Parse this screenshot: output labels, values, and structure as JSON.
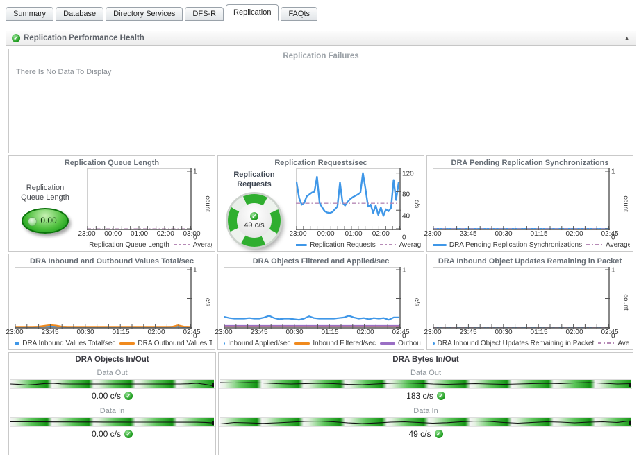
{
  "tabs": [
    {
      "label": "Summary",
      "active": false
    },
    {
      "label": "Database",
      "active": false
    },
    {
      "label": "Directory Services",
      "active": false
    },
    {
      "label": "DFS-R",
      "active": false
    },
    {
      "label": "Replication",
      "active": true
    },
    {
      "label": "FAQts",
      "active": false
    }
  ],
  "header": {
    "title": "Replication Performance Health",
    "status_icon": "green-check-icon",
    "collapse_icon": "▲"
  },
  "failures_panel": {
    "title": "Replication Failures",
    "empty_text": "There Is No Data To Display"
  },
  "gauges": {
    "queue": {
      "label_line1": "Replication",
      "label_line2": "Queue Length",
      "value": "0.00"
    },
    "requests": {
      "label_line1": "Replication",
      "label_line2": "Requests",
      "value": "49 c/s",
      "status_icon": "green-check-icon"
    }
  },
  "icons": {
    "check_glyph": "✓"
  },
  "colors": {
    "series_blue": "#3f97e8",
    "series_orange": "#f08a1e",
    "series_purple": "#9a6fc4",
    "average_dash": "#b68ab6",
    "gauge_green": "#1b9e1b"
  },
  "chart_data": [
    {
      "type": "line",
      "title": "Replication Queue Length",
      "ylabel": "count",
      "ylim": [
        0,
        1
      ],
      "yticks": [
        {
          "v": 0,
          "label": "0"
        },
        {
          "v": 0.5,
          "label": ""
        },
        {
          "v": 1,
          "label": "1"
        }
      ],
      "n_xticks": 13,
      "xtick_labels": [
        "23:00",
        "00:00",
        "01:00",
        "02:00",
        "03:00"
      ],
      "series": [],
      "average": 0,
      "legend": [
        {
          "swatch": "square",
          "color": "#3f97e8",
          "label": "Replication Queue Length"
        },
        {
          "swatch": "dash",
          "color": "#b68ab6",
          "label": "Average"
        }
      ]
    },
    {
      "type": "line",
      "title": "Replication Requests/sec",
      "ylabel": "c/s",
      "ylim": [
        0,
        124
      ],
      "yticks": [
        {
          "v": 0,
          "label": "0"
        },
        {
          "v": 40,
          "label": "40"
        },
        {
          "v": 80,
          "label": "80"
        },
        {
          "v": 120,
          "label": "120"
        }
      ],
      "n_xticks": 16,
      "xtick_labels": [
        "23:00",
        "00:00",
        "01:00",
        "02:00"
      ],
      "xtick_pos": [
        0.02,
        0.285,
        0.55,
        0.81
      ],
      "series": [
        {
          "name": "Replication Requests",
          "color": "#3f97e8",
          "width": 2.4,
          "values": [
            100,
            66,
            52,
            56,
            70,
            74,
            78,
            80,
            112,
            56,
            46,
            38,
            35,
            34,
            36,
            42,
            48,
            100,
            56,
            50,
            58,
            64,
            68,
            71,
            74,
            78,
            120,
            86,
            48,
            52,
            34,
            50,
            30,
            46,
            28,
            42,
            38,
            45,
            105,
            62,
            100
          ]
        }
      ],
      "average": 55,
      "legend": [
        {
          "swatch": "line",
          "color": "#3f97e8",
          "label": "Replication Requests"
        },
        {
          "swatch": "dash",
          "color": "#b68ab6",
          "label": "Average"
        }
      ]
    },
    {
      "type": "line",
      "title": "DRA Pending Replication Synchronizations",
      "ylabel": "count",
      "ylim": [
        0,
        1
      ],
      "yticks": [
        {
          "v": 0,
          "label": "0"
        },
        {
          "v": 0.5,
          "label": ""
        },
        {
          "v": 1,
          "label": "1"
        }
      ],
      "n_xticks": 16,
      "xtick_labels": [
        "23:00",
        "23:45",
        "00:30",
        "01:15",
        "02:00",
        "02:45"
      ],
      "series": [
        {
          "name": "DRA Pending Replication Synchronizations",
          "color": "#3f97e8",
          "width": 2,
          "values": [
            0,
            0
          ]
        }
      ],
      "average": 0,
      "legend": [
        {
          "swatch": "line",
          "color": "#3f97e8",
          "label": "DRA Pending Replication Synchronizations"
        },
        {
          "swatch": "dash",
          "color": "#b68ab6",
          "label": "Average"
        }
      ]
    },
    {
      "type": "line",
      "title": "DRA Inbound and Outbound Values Total/sec",
      "ylabel": "c/s",
      "ylim": [
        0,
        1
      ],
      "yticks": [
        {
          "v": 0,
          "label": "0"
        },
        {
          "v": 0.5,
          "label": ""
        },
        {
          "v": 1,
          "label": "1"
        }
      ],
      "n_xticks": 16,
      "xtick_labels": [
        "23:00",
        "23:45",
        "00:30",
        "01:15",
        "02:00",
        "02:45"
      ],
      "series": [
        {
          "name": "DRA Inbound Values Total/sec",
          "color": "#3f97e8",
          "width": 2,
          "values": [
            0.006,
            0.006,
            0.006,
            0.006,
            0.008,
            0.015,
            0.02,
            0.015,
            0.008,
            0.006,
            0.006,
            0.006,
            0.006,
            0.006,
            0.006,
            0.006,
            0.006,
            0.006,
            0.006,
            0.006,
            0.006,
            0.006,
            0.006,
            0.006,
            0.006,
            0.006,
            0.006,
            0.008,
            0.01,
            0.006,
            0.006
          ]
        },
        {
          "name": "DRA Outbound Values Total/sec",
          "color": "#f08a1e",
          "width": 2,
          "values": [
            0.008,
            0.008,
            0.008,
            0.008,
            0.012,
            0.025,
            0.04,
            0.03,
            0.012,
            0.008,
            0.008,
            0.008,
            0.008,
            0.008,
            0.008,
            0.008,
            0.008,
            0.008,
            0.008,
            0.008,
            0.008,
            0.008,
            0.008,
            0.008,
            0.008,
            0.008,
            0.008,
            0.01,
            0.035,
            0.012,
            0.008
          ]
        }
      ],
      "average": null,
      "legend": [
        {
          "swatch": "line",
          "color": "#3f97e8",
          "label": "DRA Inbound Values Total/sec"
        },
        {
          "swatch": "line",
          "color": "#f08a1e",
          "label": "DRA Outbound Values Tota"
        }
      ]
    },
    {
      "type": "line",
      "title": "DRA Objects Filtered and Applied/sec",
      "ylabel": "c/s",
      "ylim": [
        0,
        1
      ],
      "yticks": [
        {
          "v": 0,
          "label": "0"
        },
        {
          "v": 0.5,
          "label": ""
        },
        {
          "v": 1,
          "label": "1"
        }
      ],
      "n_xticks": 16,
      "xtick_labels": [
        "23:00",
        "23:45",
        "00:30",
        "01:15",
        "02:00",
        "02:45"
      ],
      "series": [
        {
          "name": "Inbound Applied/sec",
          "color": "#3f97e8",
          "width": 2.2,
          "values": [
            0.18,
            0.16,
            0.15,
            0.15,
            0.15,
            0.16,
            0.15,
            0.15,
            0.17,
            0.2,
            0.16,
            0.14,
            0.15,
            0.15,
            0.14,
            0.13,
            0.15,
            0.19,
            0.16,
            0.15,
            0.15,
            0.15,
            0.15,
            0.16,
            0.17,
            0.2,
            0.17,
            0.15,
            0.16,
            0.14,
            0.16,
            0.15,
            0.16,
            0.13,
            0.17,
            0.17
          ]
        },
        {
          "name": "Inbound Filtered/sec",
          "color": "#f08a1e",
          "width": 1.8,
          "values": [
            0.018,
            0.018
          ]
        },
        {
          "name": "Outbound Filtered/sec",
          "color": "#9a6fc4",
          "width": 1.8,
          "values": [
            0.026,
            0.026
          ]
        }
      ],
      "average": null,
      "legend": [
        {
          "swatch": "line",
          "color": "#3f97e8",
          "label": "Inbound Applied/sec"
        },
        {
          "swatch": "line",
          "color": "#f08a1e",
          "label": "Inbound Filtered/sec"
        },
        {
          "swatch": "line",
          "color": "#9a6fc4",
          "label": "Outbound F"
        }
      ]
    },
    {
      "type": "line",
      "title": "DRA Inbound Object Updates Remaining in Packet",
      "ylabel": "count",
      "ylim": [
        0,
        1
      ],
      "yticks": [
        {
          "v": 0,
          "label": "0"
        },
        {
          "v": 0.5,
          "label": ""
        },
        {
          "v": 1,
          "label": "1"
        }
      ],
      "n_xticks": 16,
      "xtick_labels": [
        "23:00",
        "23:45",
        "00:30",
        "01:15",
        "02:00",
        "02:45"
      ],
      "series": [
        {
          "name": "DRA Inbound Object Updates Remaining in Packet",
          "color": "#3f97e8",
          "width": 2,
          "values": [
            0,
            0
          ]
        }
      ],
      "average": 0,
      "legend": [
        {
          "swatch": "line",
          "color": "#3f97e8",
          "label": "DRA Inbound Object Updates Remaining in Packet"
        },
        {
          "swatch": "dash",
          "color": "#b68ab6",
          "label": "Average"
        }
      ]
    },
    {
      "type": "flow",
      "title": "DRA Objects In/Out",
      "rows": [
        {
          "label": "Data Out",
          "value": "0.00 c/s",
          "status_icon": "green-check-icon",
          "line": [
            0.5,
            0.56,
            0.64,
            0.56,
            0.44,
            0.4,
            0.48,
            0.5,
            0.5,
            0.5,
            0.5,
            0.5,
            0.5,
            0.5,
            0.5,
            0.5,
            0.5,
            0.5,
            0.5,
            0.5,
            0.5,
            0.47,
            0.4,
            0.56,
            0.78
          ]
        },
        {
          "label": "Data In",
          "value": "0.00 c/s",
          "status_icon": "green-check-icon",
          "line": [
            0.44,
            0.45,
            0.45,
            0.46,
            0.46,
            0.47,
            0.47,
            0.47,
            0.48,
            0.48,
            0.48,
            0.49,
            0.49,
            0.49,
            0.5,
            0.5,
            0.5,
            0.5,
            0.5,
            0.5,
            0.51,
            0.51,
            0.51,
            0.54,
            0.62
          ]
        }
      ]
    },
    {
      "type": "flow",
      "title": "DRA Bytes In/Out",
      "rows": [
        {
          "label": "Data Out",
          "value": "183 c/s",
          "status_icon": "green-check-icon",
          "line": [
            0.3,
            0.35,
            0.3,
            0.35,
            0.45,
            0.5,
            0.45,
            0.4,
            0.45,
            0.55,
            0.6,
            0.5,
            0.4,
            0.35,
            0.4,
            0.5,
            0.55,
            0.5,
            0.45,
            0.5,
            0.55,
            0.5,
            0.45,
            0.4,
            0.45,
            0.35,
            0.3,
            0.4,
            0.5,
            0.45
          ]
        },
        {
          "label": "Data In",
          "value": "49 c/s",
          "status_icon": "green-check-icon",
          "line": [
            0.75,
            0.55,
            0.6,
            0.68,
            0.6,
            0.5,
            0.38,
            0.35,
            0.45,
            0.6,
            0.7,
            0.62,
            0.5,
            0.45,
            0.55,
            0.65,
            0.58,
            0.45,
            0.35,
            0.4,
            0.55,
            0.65,
            0.55,
            0.45,
            0.5,
            0.6,
            0.5,
            0.45,
            0.55,
            0.3
          ]
        }
      ]
    }
  ]
}
